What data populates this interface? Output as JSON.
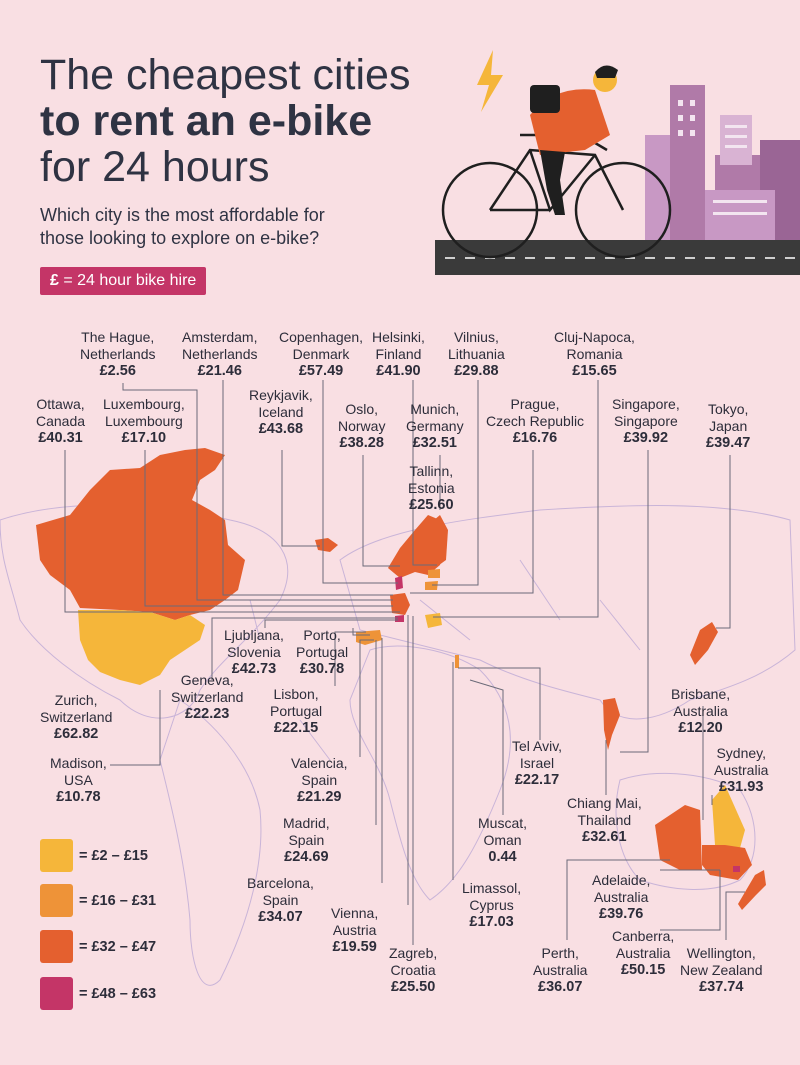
{
  "title": {
    "line1": "The cheapest cities",
    "line2": "to rent an e-bike",
    "line3": "for 24 hours"
  },
  "subtitle": {
    "line1": "Which city is the most affordable for",
    "line2": "those looking to explore on e-bike?"
  },
  "badge": {
    "symbol": "£",
    "text": " = 24 hour bike hire"
  },
  "colors": {
    "background": "#f9dfe3",
    "tier1": "#f5b63a",
    "tier2": "#ee9338",
    "tier3": "#e4602f",
    "tier4": "#c43567",
    "accent": "#c43567"
  },
  "legend": [
    {
      "label": "= £2 – £15",
      "color": "#f5b63a"
    },
    {
      "label": "= £16 – £31",
      "color": "#ee9338"
    },
    {
      "label": "= £32 – £47",
      "color": "#e4602f"
    },
    {
      "label": "= £48 – £63",
      "color": "#c43567"
    }
  ],
  "cities": [
    {
      "city": "The Hague,",
      "country": "Netherlands",
      "price": "£2.56"
    },
    {
      "city": "Amsterdam,",
      "country": "Netherlands",
      "price": "£21.46"
    },
    {
      "city": "Copenhagen,",
      "country": "Denmark",
      "price": "£57.49"
    },
    {
      "city": "Helsinki,",
      "country": "Finland",
      "price": "£41.90"
    },
    {
      "city": "Vilnius,",
      "country": "Lithuania",
      "price": "£29.88"
    },
    {
      "city": "Cluj-Napoca,",
      "country": "Romania",
      "price": "£15.65"
    },
    {
      "city": "Ottawa,",
      "country": "Canada",
      "price": "£40.31"
    },
    {
      "city": "Luxembourg,",
      "country": "Luxembourg",
      "price": "£17.10"
    },
    {
      "city": "Reykjavik,",
      "country": "Iceland",
      "price": "£43.68"
    },
    {
      "city": "Oslo,",
      "country": "Norway",
      "price": "£38.28"
    },
    {
      "city": "Munich,",
      "country": "Germany",
      "price": "£32.51"
    },
    {
      "city": "Prague,",
      "country": "Czech Republic",
      "price": "£16.76"
    },
    {
      "city": "Singapore,",
      "country": "Singapore",
      "price": "£39.92"
    },
    {
      "city": "Tokyo,",
      "country": "Japan",
      "price": "£39.47"
    },
    {
      "city": "Tallinn,",
      "country": "Estonia",
      "price": "£25.60"
    },
    {
      "city": "Ljubljana,",
      "country": "Slovenia",
      "price": "£42.73"
    },
    {
      "city": "Porto,",
      "country": "Portugal",
      "price": "£30.78"
    },
    {
      "city": "Zurich,",
      "country": "Switzerland",
      "price": "£62.82"
    },
    {
      "city": "Geneva,",
      "country": "Switzerland",
      "price": "£22.23"
    },
    {
      "city": "Lisbon,",
      "country": "Portugal",
      "price": "£22.15"
    },
    {
      "city": "Brisbane,",
      "country": "Australia",
      "price": "£12.20"
    },
    {
      "city": "Madison,",
      "country": "USA",
      "price": "£10.78"
    },
    {
      "city": "Valencia,",
      "country": "Spain",
      "price": "£21.29"
    },
    {
      "city": "Tel Aviv,",
      "country": "Israel",
      "price": "£22.17"
    },
    {
      "city": "Sydney,",
      "country": "Australia",
      "price": "£31.93"
    },
    {
      "city": "Chiang Mai,",
      "country": "Thailand",
      "price": "£32.61"
    },
    {
      "city": "Madrid,",
      "country": "Spain",
      "price": "£24.69"
    },
    {
      "city": "Muscat,",
      "country": "Oman",
      "price": "0.44"
    },
    {
      "city": "Adelaide,",
      "country": "Australia",
      "price": "£39.76"
    },
    {
      "city": "Barcelona,",
      "country": "Spain",
      "price": "£34.07"
    },
    {
      "city": "Limassol,",
      "country": "Cyprus",
      "price": "£17.03"
    },
    {
      "city": "Vienna,",
      "country": "Austria",
      "price": "£19.59"
    },
    {
      "city": "Zagreb,",
      "country": "Croatia",
      "price": "£25.50"
    },
    {
      "city": "Perth,",
      "country": "Australia",
      "price": "£36.07"
    },
    {
      "city": "Canberra,",
      "country": "Australia",
      "price": "£50.15"
    },
    {
      "city": "Wellington,",
      "country": "New Zealand",
      "price": "£37.74"
    }
  ]
}
